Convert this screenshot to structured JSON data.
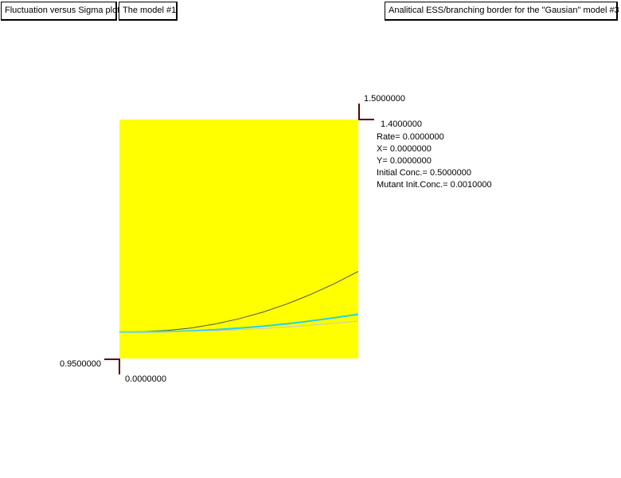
{
  "toolbar": {
    "fluctuation_label": "Fluctuation versus Sigma plot",
    "model_label": "The model #1",
    "ess_label": "Analitical ESS/branching border for the \"Gausian\" model #3"
  },
  "axes": {
    "y_max_label": "1.5000000",
    "x_max_label": "1.4000000",
    "y_min_label": "0.9500000",
    "x_min_label": "0.0000000"
  },
  "info": {
    "rate": "Rate= 0.0000000",
    "x": "X= 0.0000000",
    "y": "Y= 0.0000000",
    "initial_conc": "Initial Conc.= 0.5000000",
    "mutant_init_conc": "Mutant Init.Conc.= 0.0010000"
  },
  "colors": {
    "plot_background": "#ffff00",
    "axis_corner": "#5a0000",
    "curve_dark": "#505050",
    "curve_cyan": "#22d3e8",
    "curve_light": "#c4c4d4"
  },
  "chart_data": {
    "type": "line",
    "xlim": [
      0.0,
      1.4
    ],
    "ylim": [
      0.95,
      1.5
    ],
    "grid": false,
    "series": [
      {
        "color": "#505050",
        "x": [
          0.0,
          0.14,
          0.28,
          0.42,
          0.56,
          0.7,
          0.84,
          0.98,
          1.12,
          1.26,
          1.4
        ],
        "y": [
          1.011,
          1.0117,
          1.0147,
          1.0202,
          1.0293,
          1.0413,
          1.0565,
          1.0752,
          1.0972,
          1.1222,
          1.1503
        ]
      },
      {
        "color": "#22d3e8",
        "x": [
          0.0,
          0.14,
          0.28,
          0.42,
          0.56,
          0.7,
          0.84,
          0.98,
          1.12,
          1.26,
          1.4
        ],
        "y": [
          1.011,
          1.011,
          1.012,
          1.0136,
          1.0162,
          1.0198,
          1.0242,
          1.0297,
          1.0363,
          1.0437,
          1.0517
        ]
      },
      {
        "color": "#c4c4d4",
        "x": [
          0.0,
          0.14,
          0.28,
          0.42,
          0.56,
          0.7,
          0.84,
          0.98,
          1.12,
          1.26,
          1.4
        ],
        "y": [
          1.011,
          1.011,
          1.0114,
          1.0123,
          1.0139,
          1.0161,
          1.019,
          1.0225,
          1.0266,
          1.0312,
          1.0363
        ]
      }
    ]
  }
}
